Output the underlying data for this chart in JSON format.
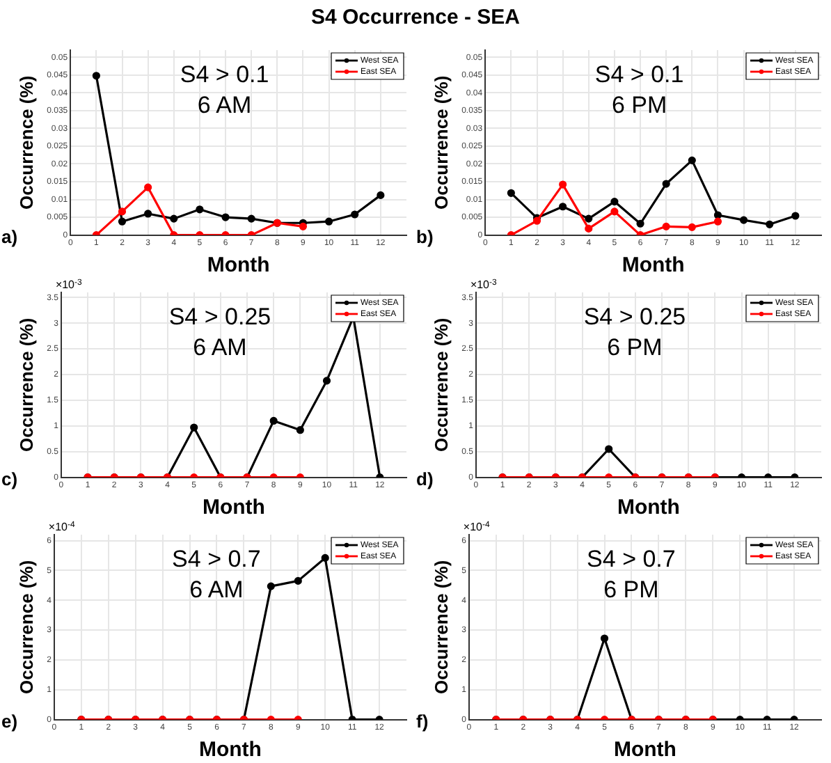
{
  "chart_data": [
    {
      "type": "line",
      "title": "S4 Occurrence - SEA",
      "xlabel": "Month",
      "ylabel": "Occurrence (%)",
      "annotations": [
        "S4 > 0.1",
        "6 AM",
        "a)"
      ],
      "xlim": [
        0,
        13
      ],
      "xticks": [
        0,
        1,
        2,
        3,
        4,
        5,
        6,
        7,
        8,
        9,
        10,
        11,
        12
      ],
      "ylim": [
        0,
        0.052
      ],
      "yticks": [
        0,
        0.005,
        0.01,
        0.015,
        0.02,
        0.025,
        0.03,
        0.035,
        0.04,
        0.045,
        0.05
      ],
      "grid": true,
      "legend": "top right",
      "marker": "circle",
      "series": [
        {
          "name": "West SEA",
          "color": "#000000",
          "x": [
            1,
            2,
            3,
            4,
            5,
            6,
            7,
            8,
            9,
            10,
            11,
            12
          ],
          "values": [
            0.0448,
            0.0038,
            0.006,
            0.0046,
            0.0072,
            0.005,
            0.0046,
            0.0034,
            0.0034,
            0.0038,
            0.0058,
            0.0112
          ]
        },
        {
          "name": "East SEA",
          "color": "#ff0000",
          "x": [
            1,
            2,
            3,
            4,
            5,
            6,
            7,
            8,
            9
          ],
          "values": [
            0,
            0.0066,
            0.0134,
            0,
            0,
            0,
            0,
            0.0034,
            0.0024
          ]
        }
      ]
    },
    {
      "type": "line",
      "xlabel": "Month",
      "ylabel": "Occurrence (%)",
      "annotations": [
        "S4 > 0.1",
        "6 PM",
        "b)"
      ],
      "xlim": [
        0,
        13
      ],
      "xticks": [
        0,
        1,
        2,
        3,
        4,
        5,
        6,
        7,
        8,
        9,
        10,
        11,
        12
      ],
      "ylim": [
        0,
        0.052
      ],
      "yticks": [
        0,
        0.005,
        0.01,
        0.015,
        0.02,
        0.025,
        0.03,
        0.035,
        0.04,
        0.045,
        0.05
      ],
      "grid": true,
      "legend": "top right",
      "marker": "circle",
      "series": [
        {
          "name": "West SEA",
          "color": "#000000",
          "x": [
            1,
            2,
            3,
            4,
            5,
            6,
            7,
            8,
            9,
            10,
            11,
            12
          ],
          "values": [
            0.0118,
            0.0048,
            0.008,
            0.0046,
            0.0094,
            0.0032,
            0.0144,
            0.021,
            0.0056,
            0.0042,
            0.003,
            0.0054
          ]
        },
        {
          "name": "East SEA",
          "color": "#ff0000",
          "x": [
            1,
            2,
            3,
            4,
            5,
            6,
            7,
            8,
            9
          ],
          "values": [
            0,
            0.004,
            0.0142,
            0.0018,
            0.0066,
            0,
            0.0024,
            0.0022,
            0.0038
          ]
        }
      ]
    },
    {
      "type": "line",
      "xlabel": "Month",
      "ylabel": "Occurrence (%)",
      "annotations": [
        "S4 > 0.25",
        "6 AM",
        "c)",
        "×10$^{-3}$"
      ],
      "xlim": [
        0,
        13
      ],
      "xticks": [
        0,
        1,
        2,
        3,
        4,
        5,
        6,
        7,
        8,
        9,
        10,
        11,
        12
      ],
      "ylim": [
        0,
        3.6
      ],
      "yticks": [
        0,
        0.5,
        1,
        1.5,
        2,
        2.5,
        3,
        3.5
      ],
      "grid": true,
      "legend": "top right",
      "marker": "circle",
      "series": [
        {
          "name": "West SEA",
          "color": "#000000",
          "x": [
            1,
            2,
            3,
            4,
            5,
            6,
            7,
            8,
            9,
            10,
            11,
            12
          ],
          "values": [
            0,
            0,
            0,
            0,
            0.97,
            0,
            0,
            1.1,
            0.92,
            1.88,
            3.12,
            0
          ]
        },
        {
          "name": "East SEA",
          "color": "#ff0000",
          "x": [
            1,
            2,
            3,
            4,
            5,
            6,
            7,
            8,
            9
          ],
          "values": [
            0,
            0,
            0,
            0,
            0,
            0,
            0,
            0,
            0
          ]
        }
      ]
    },
    {
      "type": "line",
      "xlabel": "Month",
      "ylabel": "Occurrence (%)",
      "annotations": [
        "S4 > 0.25",
        "6 PM",
        "d)",
        "×10$^{-3}$"
      ],
      "xlim": [
        0,
        13
      ],
      "xticks": [
        0,
        1,
        2,
        3,
        4,
        5,
        6,
        7,
        8,
        9,
        10,
        11,
        12
      ],
      "ylim": [
        0,
        3.6
      ],
      "yticks": [
        0,
        0.5,
        1,
        1.5,
        2,
        2.5,
        3,
        3.5
      ],
      "grid": true,
      "legend": "top right",
      "marker": "circle",
      "series": [
        {
          "name": "West SEA",
          "color": "#000000",
          "x": [
            1,
            2,
            3,
            4,
            5,
            6,
            7,
            8,
            9,
            10,
            11,
            12
          ],
          "values": [
            0,
            0,
            0,
            0,
            0.55,
            0,
            0,
            0,
            0,
            0,
            0,
            0
          ]
        },
        {
          "name": "East SEA",
          "color": "#ff0000",
          "x": [
            1,
            2,
            3,
            4,
            5,
            6,
            7,
            8,
            9
          ],
          "values": [
            0,
            0,
            0,
            0,
            0,
            0,
            0,
            0,
            0
          ]
        }
      ]
    },
    {
      "type": "line",
      "xlabel": "Month",
      "ylabel": "Occurrence (%)",
      "annotations": [
        "S4 > 0.7",
        "6 AM",
        "e)",
        "×10$^{-4}$"
      ],
      "xlim": [
        0,
        13
      ],
      "xticks": [
        0,
        1,
        2,
        3,
        4,
        5,
        6,
        7,
        8,
        9,
        10,
        11,
        12
      ],
      "ylim": [
        0,
        6.2
      ],
      "yticks": [
        0,
        1,
        2,
        3,
        4,
        5,
        6
      ],
      "grid": true,
      "legend": "top right",
      "marker": "circle",
      "series": [
        {
          "name": "West SEA",
          "color": "#000000",
          "x": [
            1,
            2,
            3,
            4,
            5,
            6,
            7,
            8,
            9,
            10,
            11,
            12
          ],
          "values": [
            0,
            0,
            0,
            0,
            0,
            0,
            0,
            4.47,
            4.65,
            5.42,
            0,
            0
          ]
        },
        {
          "name": "East SEA",
          "color": "#ff0000",
          "x": [
            1,
            2,
            3,
            4,
            5,
            6,
            7,
            8,
            9
          ],
          "values": [
            0,
            0,
            0,
            0,
            0,
            0,
            0,
            0,
            0
          ]
        }
      ]
    },
    {
      "type": "line",
      "xlabel": "Month",
      "ylabel": "Occurrence (%)",
      "annotations": [
        "S4 > 0.7",
        "6 PM",
        "f)",
        "×10$^{-4}$"
      ],
      "xlim": [
        0,
        13
      ],
      "xticks": [
        0,
        1,
        2,
        3,
        4,
        5,
        6,
        7,
        8,
        9,
        10,
        11,
        12
      ],
      "ylim": [
        0,
        6.2
      ],
      "yticks": [
        0,
        1,
        2,
        3,
        4,
        5,
        6
      ],
      "grid": true,
      "legend": "top right",
      "marker": "circle",
      "series": [
        {
          "name": "West SEA",
          "color": "#000000",
          "x": [
            1,
            2,
            3,
            4,
            5,
            6,
            7,
            8,
            9,
            10,
            11,
            12
          ],
          "values": [
            0,
            0,
            0,
            0,
            2.72,
            0,
            0,
            0,
            0,
            0,
            0,
            0
          ]
        },
        {
          "name": "East SEA",
          "color": "#ff0000",
          "x": [
            1,
            2,
            3,
            4,
            5,
            6,
            7,
            8,
            9
          ],
          "values": [
            0,
            0,
            0,
            0,
            0,
            0,
            0,
            0,
            0
          ]
        }
      ]
    }
  ]
}
